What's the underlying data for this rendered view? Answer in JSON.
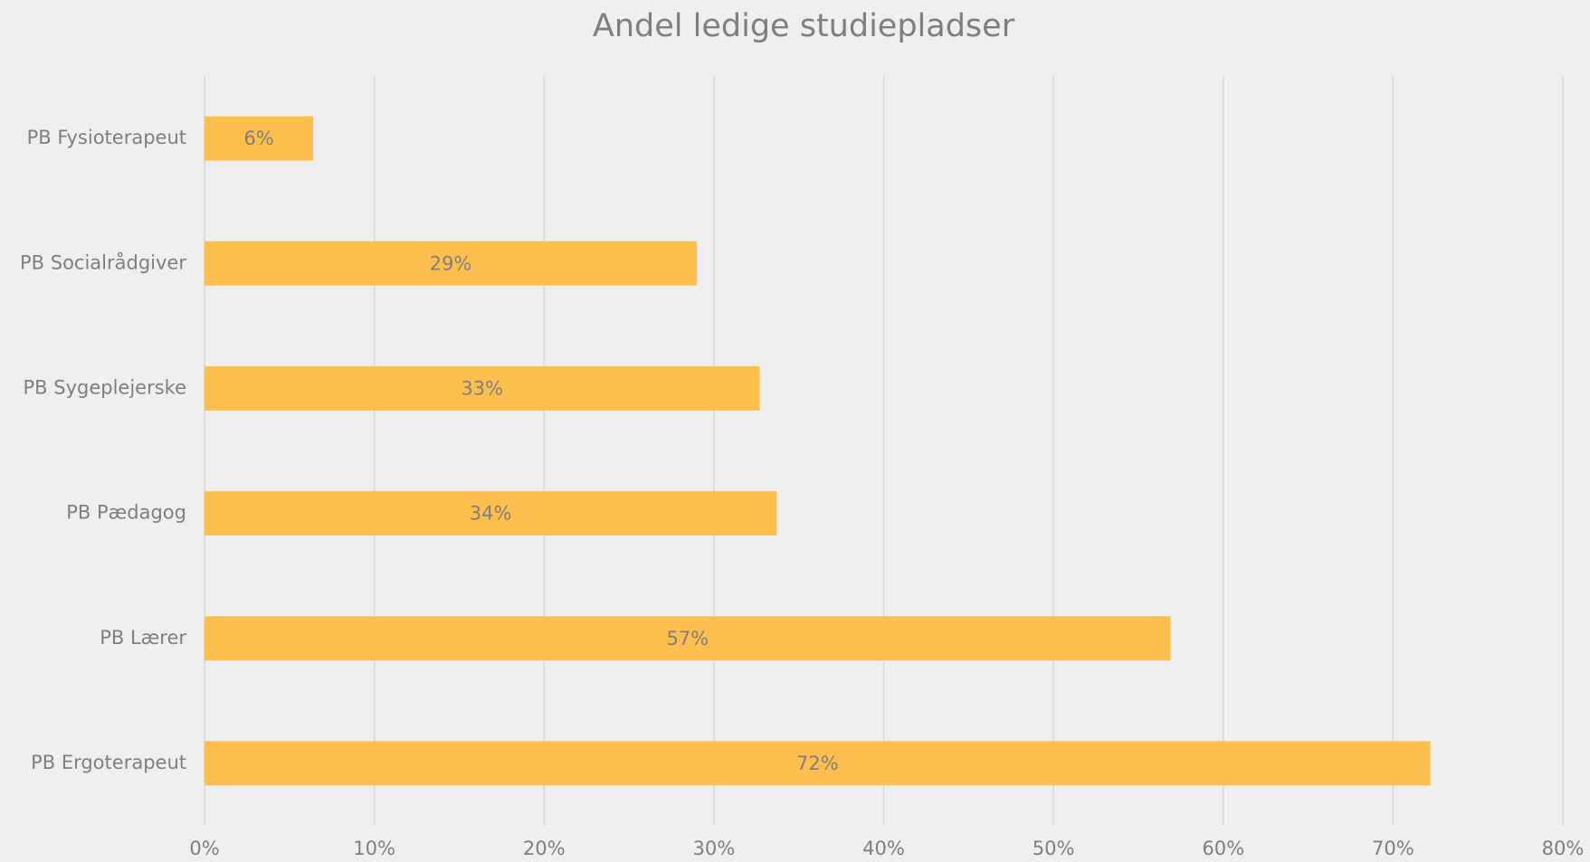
{
  "chart_data": {
    "type": "bar",
    "orientation": "horizontal",
    "title": "Andel ledige studiepladser",
    "categories": [
      "PB Fysioterapeut",
      "PB Socialrådgiver",
      "PB Sygeplejerske",
      "PB Pædagog",
      "PB Lærer",
      "PB Ergoterapeut"
    ],
    "values": [
      6.4,
      29.0,
      32.7,
      33.7,
      56.9,
      72.2
    ],
    "value_labels": [
      "6%",
      "29%",
      "33%",
      "34%",
      "57%",
      "72%"
    ],
    "color": "#ffbf4f",
    "xlim": [
      0,
      80
    ],
    "xticks": [
      {
        "value": 0,
        "label": "0%"
      },
      {
        "value": 10,
        "label": "10%"
      },
      {
        "value": 20,
        "label": "20%"
      },
      {
        "value": 30,
        "label": "30%"
      },
      {
        "value": 40,
        "label": "40%"
      },
      {
        "value": 50,
        "label": "50%"
      },
      {
        "value": 60,
        "label": "60%"
      },
      {
        "value": 70,
        "label": "70%"
      },
      {
        "value": 80,
        "label": "80%"
      }
    ],
    "grid": true
  }
}
